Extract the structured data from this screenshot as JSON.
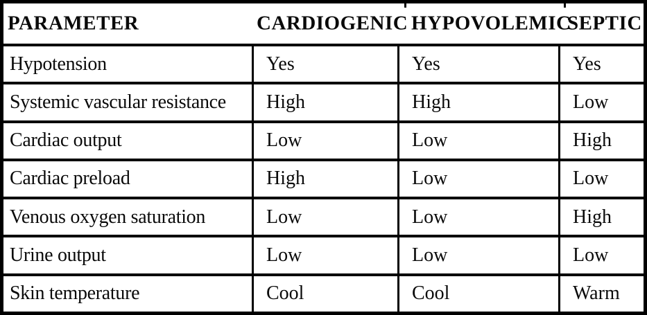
{
  "chart_data": {
    "type": "table",
    "columns": [
      "PARAMETER",
      "CARDIOGENIC",
      "HYPOVOLEMIC",
      "SEPTIC"
    ],
    "rows": [
      [
        "Hypotension",
        "Yes",
        "Yes",
        "Yes"
      ],
      [
        "Systemic vascular resistance",
        "High",
        "High",
        "Low"
      ],
      [
        "Cardiac output",
        "Low",
        "Low",
        "High"
      ],
      [
        "Cardiac preload",
        "High",
        "Low",
        "Low"
      ],
      [
        "Venous oxygen saturation",
        "Low",
        "Low",
        "High"
      ],
      [
        "Urine output",
        "Low",
        "Low",
        "Low"
      ],
      [
        "Skin temperature",
        "Cool",
        "Cool",
        "Warm"
      ]
    ]
  },
  "colors": {
    "background": "#ffffff",
    "border": "#000000",
    "text": "#0a0a0a"
  }
}
